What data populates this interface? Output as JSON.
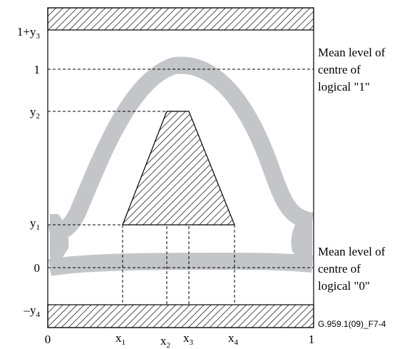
{
  "figure": {
    "reference": "G.959.1(09)_F7-4",
    "y_labels": {
      "top": "1+y",
      "top_sub": "3",
      "one": "1",
      "y2": "y",
      "y2_sub": "2",
      "y1": "y",
      "y1_sub": "1",
      "zero": "0",
      "bottom": "–y",
      "bottom_sub": "4"
    },
    "x_labels": {
      "zero": "0",
      "x1": "x",
      "x1_sub": "1",
      "x2": "x",
      "x2_sub": "2",
      "x3": "x",
      "x3_sub": "3",
      "x4": "x",
      "x4_sub": "4",
      "one": "1"
    },
    "annotation_one": [
      "Mean level of",
      "centre of",
      "logical \"1\""
    ],
    "annotation_zero": [
      "Mean level of",
      "centre of",
      "logical \"0\""
    ],
    "colors": {
      "eye_band": "#c4c5c8",
      "hatch": "#000000",
      "frame": "#000000"
    }
  }
}
